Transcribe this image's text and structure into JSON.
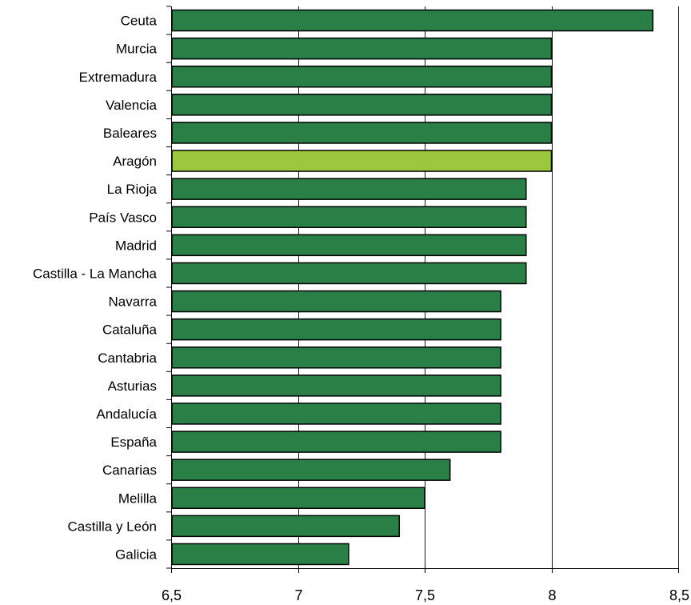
{
  "chart_data": {
    "type": "bar",
    "orientation": "horizontal",
    "title": "",
    "xlabel": "",
    "ylabel": "",
    "categories": [
      "Ceuta",
      "Murcia",
      "Extremadura",
      "Valencia",
      "Baleares",
      "Aragón",
      "La Rioja",
      "País Vasco",
      "Madrid",
      "Castilla - La Mancha",
      "Navarra",
      "Cataluña",
      "Cantabria",
      "Asturias",
      "Andalucía",
      "España",
      "Canarias",
      "Melilla",
      "Castilla y León",
      "Galicia"
    ],
    "values": [
      8.4,
      8.0,
      8.0,
      8.0,
      8.0,
      8.0,
      7.9,
      7.9,
      7.9,
      7.9,
      7.8,
      7.8,
      7.8,
      7.8,
      7.8,
      7.8,
      7.6,
      7.5,
      7.4,
      7.2
    ],
    "xlim": [
      6.5,
      8.5
    ],
    "xticks": [
      6.5,
      7,
      7.5,
      8,
      8.5
    ],
    "xtick_labels": [
      "6,5",
      "7",
      "7,5",
      "8",
      "8,5"
    ],
    "grid": "vertical major gridlines",
    "bar_color": "#2A7F46",
    "highlight_category": "Aragón",
    "highlight_color": "#9BC83F",
    "legend": "none"
  }
}
